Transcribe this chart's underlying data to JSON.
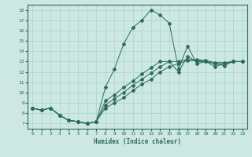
{
  "title": "",
  "xlabel": "Humidex (Indice chaleur)",
  "background_color": "#cce8e0",
  "grid_color": "#a8d4cc",
  "line_color": "#2d6b5e",
  "xlim": [
    -0.5,
    23.5
  ],
  "ylim": [
    6.5,
    18.5
  ],
  "xticks": [
    0,
    1,
    2,
    3,
    4,
    5,
    6,
    7,
    8,
    9,
    10,
    11,
    12,
    13,
    14,
    15,
    16,
    17,
    18,
    19,
    20,
    21,
    22,
    23
  ],
  "yticks": [
    7,
    8,
    9,
    10,
    11,
    12,
    13,
    14,
    15,
    16,
    17,
    18
  ],
  "series": [
    [
      8.5,
      8.3,
      8.5,
      7.8,
      7.3,
      7.2,
      7.0,
      7.2,
      10.5,
      12.3,
      14.7,
      16.3,
      17.0,
      18.0,
      17.5,
      16.7,
      12.3,
      14.5,
      12.8,
      13.0,
      12.5,
      12.8,
      13.0,
      13.0
    ],
    [
      8.5,
      8.3,
      8.5,
      7.8,
      7.3,
      7.2,
      7.0,
      7.2,
      8.5,
      9.0,
      9.5,
      10.2,
      10.8,
      11.3,
      12.0,
      12.5,
      12.8,
      13.1,
      13.1,
      13.0,
      12.8,
      12.8,
      13.0,
      13.0
    ],
    [
      8.5,
      8.3,
      8.5,
      7.8,
      7.3,
      7.2,
      7.0,
      7.2,
      8.8,
      9.4,
      10.0,
      10.7,
      11.3,
      11.9,
      12.5,
      13.0,
      13.0,
      13.2,
      13.2,
      13.1,
      12.9,
      12.9,
      13.0,
      13.0
    ],
    [
      8.5,
      8.3,
      8.5,
      7.8,
      7.3,
      7.2,
      7.0,
      7.2,
      9.2,
      9.8,
      10.5,
      11.1,
      11.8,
      12.4,
      13.0,
      13.0,
      12.0,
      13.5,
      13.0,
      13.0,
      12.8,
      12.6,
      13.0,
      13.0
    ]
  ]
}
